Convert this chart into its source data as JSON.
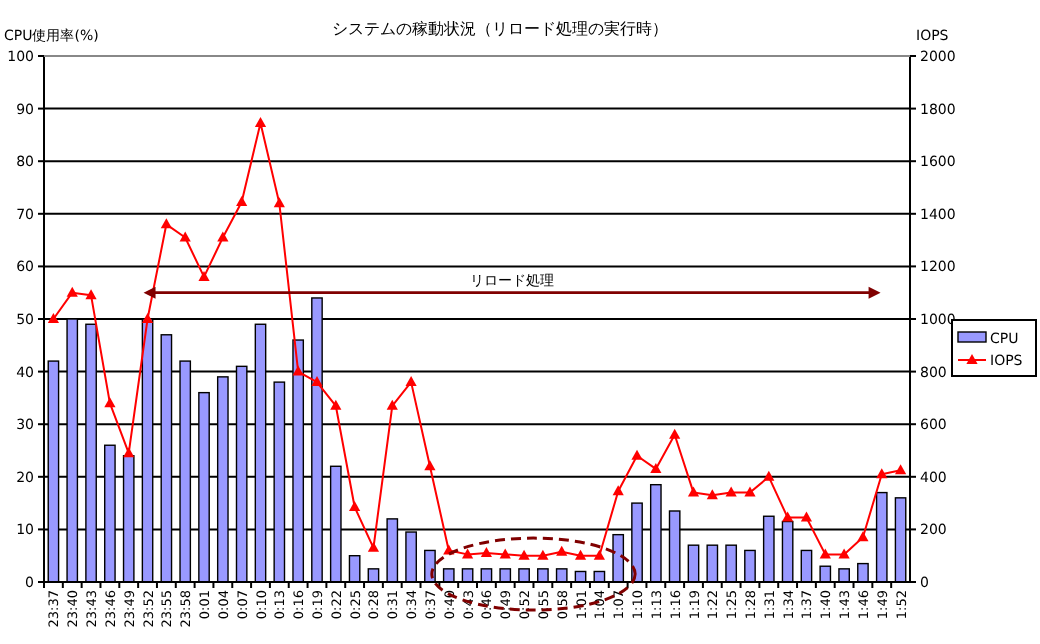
{
  "chart_data": {
    "type": "bar",
    "title": "システムの稼動状況（リロード処理の実行時）",
    "ylabel": "CPU使用率(%)",
    "y2label": "IOPS",
    "categories": [
      "23:37",
      "23:40",
      "23:43",
      "23:46",
      "23:49",
      "23:52",
      "23:55",
      "23:58",
      "0:01",
      "0:04",
      "0:07",
      "0:10",
      "0:13",
      "0:16",
      "0:19",
      "0:22",
      "0:25",
      "0:28",
      "0:31",
      "0:34",
      "0:37",
      "0:40",
      "0:43",
      "0:46",
      "0:49",
      "0:52",
      "0:55",
      "0:58",
      "1:01",
      "1:04",
      "1:07",
      "1:10",
      "1:13",
      "1:16",
      "1:19",
      "1:22",
      "1:25",
      "1:28",
      "1:31",
      "1:34",
      "1:37",
      "1:40",
      "1:43",
      "1:46",
      "1:49",
      "1:52"
    ],
    "series": [
      {
        "name": "CPU",
        "color": "#9999ff",
        "values": [
          42,
          50,
          49,
          26,
          24,
          50,
          47,
          42,
          36,
          39,
          41,
          49,
          38,
          46,
          54,
          22,
          5,
          2.5,
          12,
          9.5,
          6,
          2.5,
          2.5,
          2.5,
          2.5,
          2.5,
          2.5,
          2.5,
          2,
          2,
          9,
          15,
          18.5,
          13.5,
          7,
          7,
          7,
          6,
          12.5,
          11.5,
          6,
          3,
          2.5,
          3.5,
          17,
          16
        ]
      },
      {
        "name": "IOPS",
        "type": "line",
        "axis": "y2",
        "color": "#ff0000",
        "marker": "triangle",
        "values": [
          1000,
          1100,
          1090,
          680,
          490,
          1000,
          1360,
          1310,
          1160,
          1310,
          1445,
          1745,
          1440,
          800,
          760,
          670,
          285,
          130,
          670,
          760,
          440,
          120,
          105,
          110,
          105,
          100,
          100,
          115,
          100,
          100,
          345,
          480,
          430,
          560,
          340,
          330,
          340,
          340,
          400,
          245,
          245,
          105,
          105,
          170,
          410,
          425
        ]
      }
    ],
    "ylim": [
      0,
      100
    ],
    "yticks": [
      0,
      10,
      20,
      30,
      40,
      50,
      60,
      70,
      80,
      90,
      100
    ],
    "y2lim": [
      0,
      2000
    ],
    "y2ticks": [
      0,
      200,
      400,
      600,
      800,
      1000,
      1200,
      1400,
      1600,
      1800,
      2000
    ],
    "annotations": [
      "リロード処理"
    ],
    "grid": "y",
    "legend": "right"
  }
}
